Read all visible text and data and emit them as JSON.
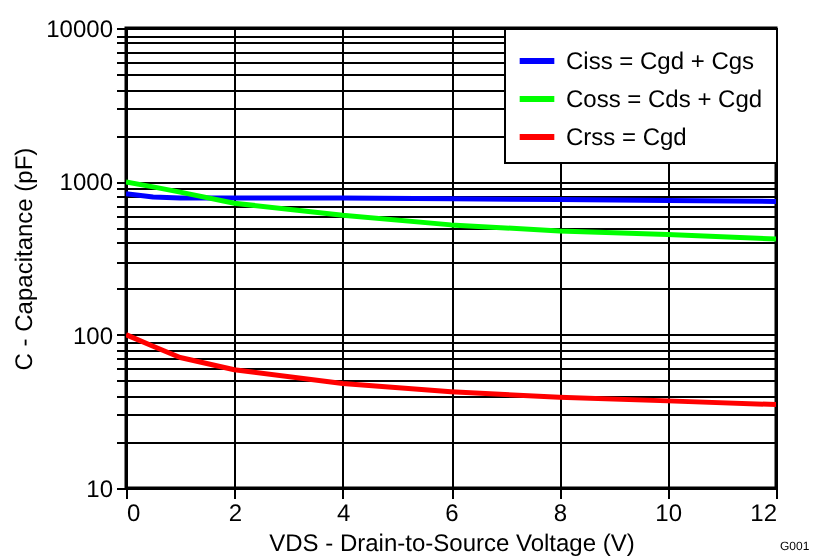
{
  "chart_data": {
    "type": "line",
    "xlabel": "VDS - Drain-to-Source Voltage (V)",
    "ylabel": "C - Capacitance  (pF)",
    "x": [
      0,
      0.5,
      1,
      2,
      4,
      6,
      8,
      10,
      12
    ],
    "series": [
      {
        "name": "Ciss = Cgd + Cgs",
        "color": "#0000ff",
        "values": [
          830,
          790,
          780,
          780,
          780,
          770,
          760,
          750,
          740
        ]
      },
      {
        "name": "Coss = Cds + Cgd",
        "color": "#00ff00",
        "values": [
          990,
          920,
          850,
          720,
          600,
          520,
          475,
          450,
          420
        ]
      },
      {
        "name": "Crss =  Cgd",
        "color": "#ff0000",
        "values": [
          100,
          84,
          71,
          59,
          48,
          42.5,
          39,
          37,
          35
        ]
      }
    ],
    "log": "y",
    "xlim": [
      0,
      12
    ],
    "xticks": [
      0,
      2,
      4,
      6,
      8,
      10,
      12
    ],
    "ylim": [
      10,
      10000
    ],
    "yticks": [
      10,
      {
        "value": 20,
        "label": null
      },
      {
        "value": 30,
        "label": null
      },
      {
        "value": 40,
        "label": null
      },
      {
        "value": 50,
        "label": null
      },
      {
        "value": 60,
        "label": null
      },
      {
        "value": 70,
        "label": null
      },
      {
        "value": 80,
        "label": null
      },
      {
        "value": 90,
        "label": null
      },
      100,
      {
        "value": 200,
        "label": null
      },
      {
        "value": 300,
        "label": null
      },
      {
        "value": 400,
        "label": null
      },
      {
        "value": 500,
        "label": null
      },
      {
        "value": 600,
        "label": null
      },
      {
        "value": 700,
        "label": null
      },
      {
        "value": 800,
        "label": null
      },
      {
        "value": 900,
        "label": null
      },
      1000,
      {
        "value": 2000,
        "label": null
      },
      {
        "value": 3000,
        "label": null
      },
      {
        "value": 4000,
        "label": null
      },
      {
        "value": 5000,
        "label": null
      },
      {
        "value": 6000,
        "label": null
      },
      {
        "value": 7000,
        "label": null
      },
      {
        "value": 8000,
        "label": null
      },
      {
        "value": 9000,
        "label": null
      },
      10000
    ],
    "grid": true,
    "legend": "top right",
    "marker": "none",
    "line_style": "solid",
    "annotations": [
      "G001"
    ]
  }
}
